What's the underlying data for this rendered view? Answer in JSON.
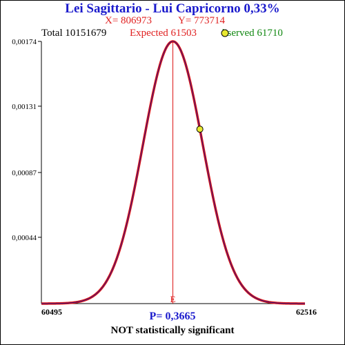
{
  "header": {
    "title": "Lei Sagittario - Lui Capricorno  0,33%",
    "x_text": "X= 806973",
    "y_text": "Y= 773714",
    "total_text": "Total  10151679",
    "expected_text": "Expected  61503",
    "observed_text": "bserved  61710"
  },
  "footer": {
    "p_text": "P= 0,3665",
    "significance_text": "NOT statistically significant"
  },
  "colors": {
    "title": "#1a1acc",
    "red_text": "#e02020",
    "green_text": "#118811",
    "curve_outer": "#dd1111",
    "curve_inner": "#2a1a8a",
    "marker_fill": "#e8e830",
    "expected_line": "#dd1111",
    "p_text": "#1a1acc"
  },
  "chart_data": {
    "type": "line",
    "title": "Lei Sagittario - Lui Capricorno  0,33%",
    "xlim": [
      60495,
      62516
    ],
    "ylim": [
      0,
      0.00174
    ],
    "x_tick_labels": [
      "60495",
      "62516"
    ],
    "y_tick_labels": [
      "0,00174",
      "0,00131",
      "0,00087",
      "0,00044"
    ],
    "y_ticks": [
      0.00174,
      0.00131,
      0.00087,
      0.00044
    ],
    "distribution": {
      "mean": 61503,
      "peak_density": 0.00174
    },
    "expected": 61503,
    "expected_label": "E",
    "observed": 61710,
    "series": [
      {
        "x": [
          60495,
          60700,
          60900,
          61100,
          61200,
          61300,
          61400,
          61503,
          61600,
          61700,
          61800,
          61900,
          62100,
          62300,
          62516
        ],
        "y": [
          9e-07,
          1e-05,
          8e-05,
          0.00038,
          0.00064,
          0.00097,
          0.00142,
          0.00174,
          0.00147,
          0.00106,
          0.0007,
          0.00041,
          9.6e-05,
          1.3e-05,
          9e-07
        ]
      }
    ]
  }
}
